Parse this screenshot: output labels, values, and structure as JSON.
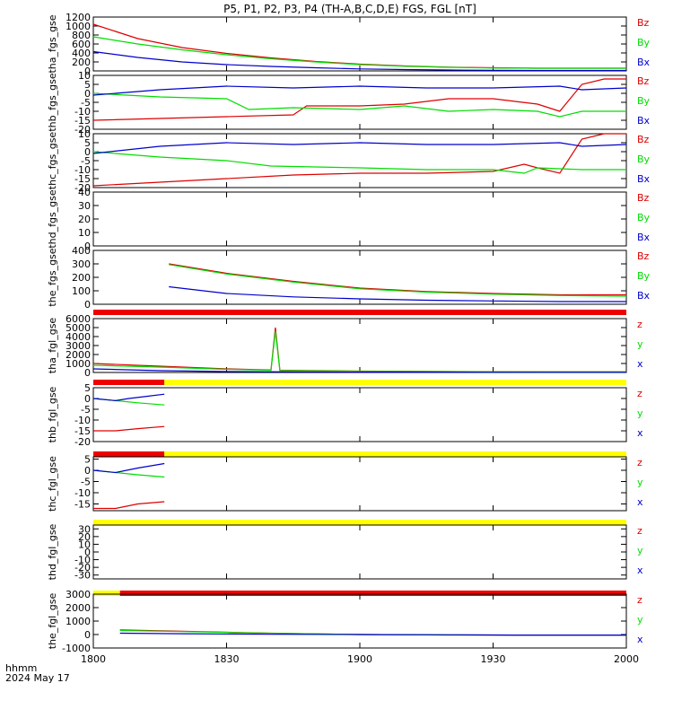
{
  "title": "P5, P1, P2, P3, P4 (TH-A,B,C,D,E) FGS, FGL [nT]",
  "colors": {
    "Bx": "#0000cc",
    "By": "#00dd00",
    "Bz": "#dd0000",
    "bar_red": "#ee0000",
    "bar_yellow": "#ffff00",
    "axis": "#000000"
  },
  "chart_data": {
    "type": "line",
    "x_axis": {
      "range": [
        "18:00",
        "20:00"
      ],
      "tick_labels": [
        "1800",
        "1830",
        "1900",
        "1930",
        "2000"
      ],
      "label_line1": "hhmm",
      "label_line2": "2024 May 17"
    },
    "panels": [
      {
        "ylabel": "tha_fgs_gse",
        "ylim": [
          0,
          1200
        ],
        "yticks": [
          "1200",
          "1000",
          "800",
          "600",
          "400",
          "200",
          "0"
        ],
        "legend": [
          "Bz",
          "By",
          "Bx"
        ],
        "series": [
          {
            "name": "Bz",
            "x": [
              "18:00",
              "18:10",
              "18:20",
              "18:30",
              "18:40",
              "18:50",
              "19:00",
              "19:10",
              "19:20",
              "19:30",
              "19:40",
              "19:50",
              "20:00"
            ],
            "y": [
              1040,
              720,
              520,
              390,
              290,
              210,
              150,
              110,
              85,
              70,
              60,
              60,
              60
            ]
          },
          {
            "name": "By",
            "x": [
              "18:00",
              "18:10",
              "18:20",
              "18:30",
              "18:40",
              "18:50",
              "19:00",
              "19:10",
              "19:20",
              "19:30",
              "19:40",
              "19:50",
              "20:00"
            ],
            "y": [
              760,
              600,
              470,
              360,
              270,
              200,
              140,
              105,
              80,
              65,
              60,
              60,
              60
            ]
          },
          {
            "name": "Bx",
            "x": [
              "18:00",
              "18:10",
              "18:20",
              "18:30",
              "18:40",
              "18:50",
              "19:00",
              "19:10",
              "19:20",
              "19:30",
              "19:40",
              "19:50",
              "20:00"
            ],
            "y": [
              430,
              300,
              200,
              140,
              100,
              70,
              45,
              30,
              20,
              15,
              10,
              10,
              10
            ]
          }
        ]
      },
      {
        "ylabel": "thb_fgs_gse",
        "ylim": [
          -20,
          10
        ],
        "yticks": [
          "10",
          "5",
          "0",
          "-5",
          "-10",
          "-15",
          "-20"
        ],
        "legend": [
          "Bz",
          "By",
          "Bx"
        ],
        "series": [
          {
            "name": "Bz",
            "x": [
              "18:00",
              "18:15",
              "18:30",
              "18:45",
              "18:48",
              "19:00",
              "19:10",
              "19:20",
              "19:30",
              "19:40",
              "19:45",
              "19:50",
              "19:55",
              "20:00"
            ],
            "y": [
              -15,
              -14,
              -13,
              -12,
              -7,
              -7,
              -6,
              -3,
              -3,
              -6,
              -10,
              5,
              8,
              8
            ]
          },
          {
            "name": "By",
            "x": [
              "18:00",
              "18:15",
              "18:30",
              "18:35",
              "18:45",
              "19:00",
              "19:10",
              "19:20",
              "19:30",
              "19:40",
              "19:45",
              "19:50",
              "20:00"
            ],
            "y": [
              0,
              -2,
              -3,
              -9,
              -8,
              -9,
              -7,
              -10,
              -9,
              -10,
              -13,
              -10,
              -10
            ]
          },
          {
            "name": "Bx",
            "x": [
              "18:00",
              "18:15",
              "18:30",
              "18:45",
              "19:00",
              "19:15",
              "19:30",
              "19:45",
              "19:50",
              "20:00"
            ],
            "y": [
              -1,
              2,
              4,
              3,
              4,
              3,
              3,
              4,
              2,
              3
            ]
          }
        ]
      },
      {
        "ylabel": "thc_fgs_gse",
        "ylim": [
          -20,
          10
        ],
        "yticks": [
          "10",
          "5",
          "0",
          "-5",
          "-10",
          "-15",
          "-20"
        ],
        "legend": [
          "Bz",
          "By",
          "Bx"
        ],
        "series": [
          {
            "name": "Bz",
            "x": [
              "18:00",
              "18:15",
              "18:30",
              "18:45",
              "19:00",
              "19:15",
              "19:30",
              "19:37",
              "19:40",
              "19:45",
              "19:50",
              "19:55",
              "20:00"
            ],
            "y": [
              -19,
              -17,
              -15,
              -13,
              -12,
              -12,
              -11,
              -7,
              -9,
              -12,
              7,
              10,
              10
            ]
          },
          {
            "name": "By",
            "x": [
              "18:00",
              "18:15",
              "18:30",
              "18:40",
              "19:00",
              "19:15",
              "19:30",
              "19:37",
              "19:40",
              "19:50",
              "20:00"
            ],
            "y": [
              0,
              -3,
              -5,
              -8,
              -9,
              -10,
              -10,
              -12,
              -9,
              -10,
              -10
            ]
          },
          {
            "name": "Bx",
            "x": [
              "18:00",
              "18:15",
              "18:30",
              "18:45",
              "19:00",
              "19:15",
              "19:30",
              "19:45",
              "19:50",
              "20:00"
            ],
            "y": [
              -1,
              3,
              5,
              4,
              5,
              4,
              4,
              5,
              3,
              4
            ]
          }
        ]
      },
      {
        "ylabel": "thd_fgs_gse",
        "ylim": [
          0,
          40
        ],
        "yticks": [
          "40",
          "30",
          "20",
          "10",
          "0"
        ],
        "legend": [
          "Bz",
          "By",
          "Bx"
        ],
        "series": []
      },
      {
        "ylabel": "the_fgs_gse",
        "ylim": [
          0,
          400
        ],
        "yticks": [
          "400",
          "300",
          "200",
          "100",
          "0"
        ],
        "legend": [
          "Bz",
          "By",
          "Bx"
        ],
        "series": [
          {
            "name": "Bz",
            "x": [
              "18:17",
              "18:30",
              "18:45",
              "19:00",
              "19:15",
              "19:30",
              "19:45",
              "20:00"
            ],
            "y": [
              300,
              230,
              170,
              120,
              95,
              80,
              70,
              70
            ]
          },
          {
            "name": "By",
            "x": [
              "18:17",
              "18:30",
              "18:45",
              "19:00",
              "19:15",
              "19:30",
              "19:45",
              "20:00"
            ],
            "y": [
              295,
              225,
              165,
              115,
              90,
              75,
              65,
              60
            ]
          },
          {
            "name": "Bx",
            "x": [
              "18:17",
              "18:30",
              "18:45",
              "19:00",
              "19:15",
              "19:30",
              "19:45",
              "20:00"
            ],
            "y": [
              130,
              80,
              55,
              40,
              30,
              25,
              20,
              20
            ]
          }
        ]
      },
      {
        "ylabel": "tha_fgl_gse",
        "ylim": [
          0,
          6000
        ],
        "yticks": [
          "6000",
          "5000",
          "4000",
          "3000",
          "2000",
          "1000",
          "0"
        ],
        "legend": [
          "z",
          "y",
          "x"
        ],
        "series": [
          {
            "name": "z",
            "x": [
              "18:00",
              "18:15",
              "18:30",
              "18:40",
              "18:41",
              "18:42",
              "19:00",
              "19:30",
              "20:00"
            ],
            "y": [
              1000,
              700,
              400,
              280,
              5000,
              250,
              150,
              80,
              60
            ]
          },
          {
            "name": "y",
            "x": [
              "18:00",
              "18:15",
              "18:30",
              "18:40",
              "18:41",
              "18:42",
              "19:00",
              "19:30",
              "20:00"
            ],
            "y": [
              800,
              600,
              350,
              250,
              4600,
              220,
              130,
              70,
              60
            ]
          },
          {
            "name": "x",
            "x": [
              "18:00",
              "18:15",
              "18:30",
              "18:45",
              "19:00",
              "19:30",
              "20:00"
            ],
            "y": [
              400,
              200,
              100,
              60,
              40,
              20,
              10
            ]
          }
        ]
      },
      {
        "ylabel": "thb_fgl_gse",
        "ylim": [
          -20,
          5
        ],
        "yticks": [
          "5",
          "0",
          "-5",
          "-10",
          "-15",
          "-20"
        ],
        "legend": [
          "z",
          "y",
          "x"
        ],
        "series": [
          {
            "name": "z",
            "x": [
              "18:00",
              "18:05",
              "18:10",
              "18:16"
            ],
            "y": [
              -15,
              -15,
              -14,
              -13
            ]
          },
          {
            "name": "y",
            "x": [
              "18:00",
              "18:05",
              "18:10",
              "18:16"
            ],
            "y": [
              0,
              -1,
              -2,
              -3
            ]
          },
          {
            "name": "x",
            "x": [
              "18:00",
              "18:05",
              "18:08",
              "18:12",
              "18:16"
            ],
            "y": [
              0,
              -1,
              0,
              1,
              2
            ]
          }
        ]
      },
      {
        "ylabel": "thc_fgl_gse",
        "ylim": [
          -18,
          6
        ],
        "yticks": [
          "5",
          "0",
          "-5",
          "-10",
          "-15"
        ],
        "legend": [
          "z",
          "y",
          "x"
        ],
        "series": [
          {
            "name": "z",
            "x": [
              "18:00",
              "18:05",
              "18:10",
              "18:16"
            ],
            "y": [
              -17,
              -17,
              -15,
              -14
            ]
          },
          {
            "name": "y",
            "x": [
              "18:00",
              "18:05",
              "18:10",
              "18:16"
            ],
            "y": [
              0,
              -1,
              -2,
              -3
            ]
          },
          {
            "name": "x",
            "x": [
              "18:00",
              "18:05",
              "18:10",
              "18:16"
            ],
            "y": [
              0,
              -1,
              1,
              3
            ]
          }
        ]
      },
      {
        "ylabel": "thd_fgl_gse",
        "ylim": [
          -35,
          35
        ],
        "yticks": [
          "30",
          "20",
          "10",
          "0",
          "-10",
          "-20",
          "-30"
        ],
        "legend": [
          "z",
          "y",
          "x"
        ],
        "series": []
      },
      {
        "ylabel": "the_fgl_gse",
        "ylim": [
          -1000,
          3000
        ],
        "yticks": [
          "3000",
          "2000",
          "1000",
          "0",
          "-1000"
        ],
        "legend": [
          "z",
          "y",
          "x"
        ],
        "series": [
          {
            "name": "z",
            "x": [
              "18:06",
              "18:20",
              "18:40",
              "19:00",
              "19:20",
              "19:35",
              "20:00"
            ],
            "y": [
              350,
              250,
              100,
              0,
              -30,
              -40,
              -40
            ]
          },
          {
            "name": "y",
            "x": [
              "18:06",
              "18:20",
              "18:40",
              "19:00",
              "19:20",
              "19:35",
              "20:00"
            ],
            "y": [
              300,
              220,
              90,
              0,
              -30,
              -40,
              -40
            ]
          },
          {
            "name": "x",
            "x": [
              "18:06",
              "18:20",
              "18:40",
              "19:00",
              "19:20",
              "19:35",
              "20:00"
            ],
            "y": [
              100,
              60,
              20,
              0,
              -20,
              -40,
              -40
            ]
          }
        ]
      }
    ]
  }
}
